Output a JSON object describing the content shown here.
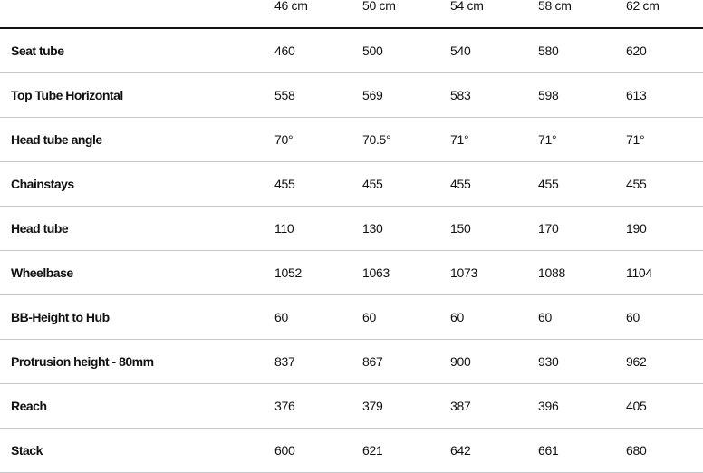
{
  "table": {
    "columns": [
      "46 cm",
      "50 cm",
      "54 cm",
      "58 cm",
      "62 cm"
    ],
    "rows": [
      {
        "label": "Seat tube",
        "values": [
          "460",
          "500",
          "540",
          "580",
          "620"
        ]
      },
      {
        "label": "Top Tube Horizontal",
        "values": [
          "558",
          "569",
          "583",
          "598",
          "613"
        ]
      },
      {
        "label": "Head tube angle",
        "values": [
          "70°",
          "70.5°",
          "71°",
          "71°",
          "71°"
        ]
      },
      {
        "label": "Chainstays",
        "values": [
          "455",
          "455",
          "455",
          "455",
          "455"
        ]
      },
      {
        "label": "Head tube",
        "values": [
          "110",
          "130",
          "150",
          "170",
          "190"
        ]
      },
      {
        "label": "Wheelbase",
        "values": [
          "1052",
          "1063",
          "1073",
          "1088",
          "1104"
        ]
      },
      {
        "label": "BB-Height to Hub",
        "values": [
          "60",
          "60",
          "60",
          "60",
          "60"
        ]
      },
      {
        "label": "Protrusion height - 80mm",
        "values": [
          "837",
          "867",
          "900",
          "930",
          "962"
        ]
      },
      {
        "label": "Reach",
        "values": [
          "376",
          "379",
          "387",
          "396",
          "405"
        ]
      },
      {
        "label": "Stack",
        "values": [
          "600",
          "621",
          "642",
          "661",
          "680"
        ]
      }
    ]
  }
}
